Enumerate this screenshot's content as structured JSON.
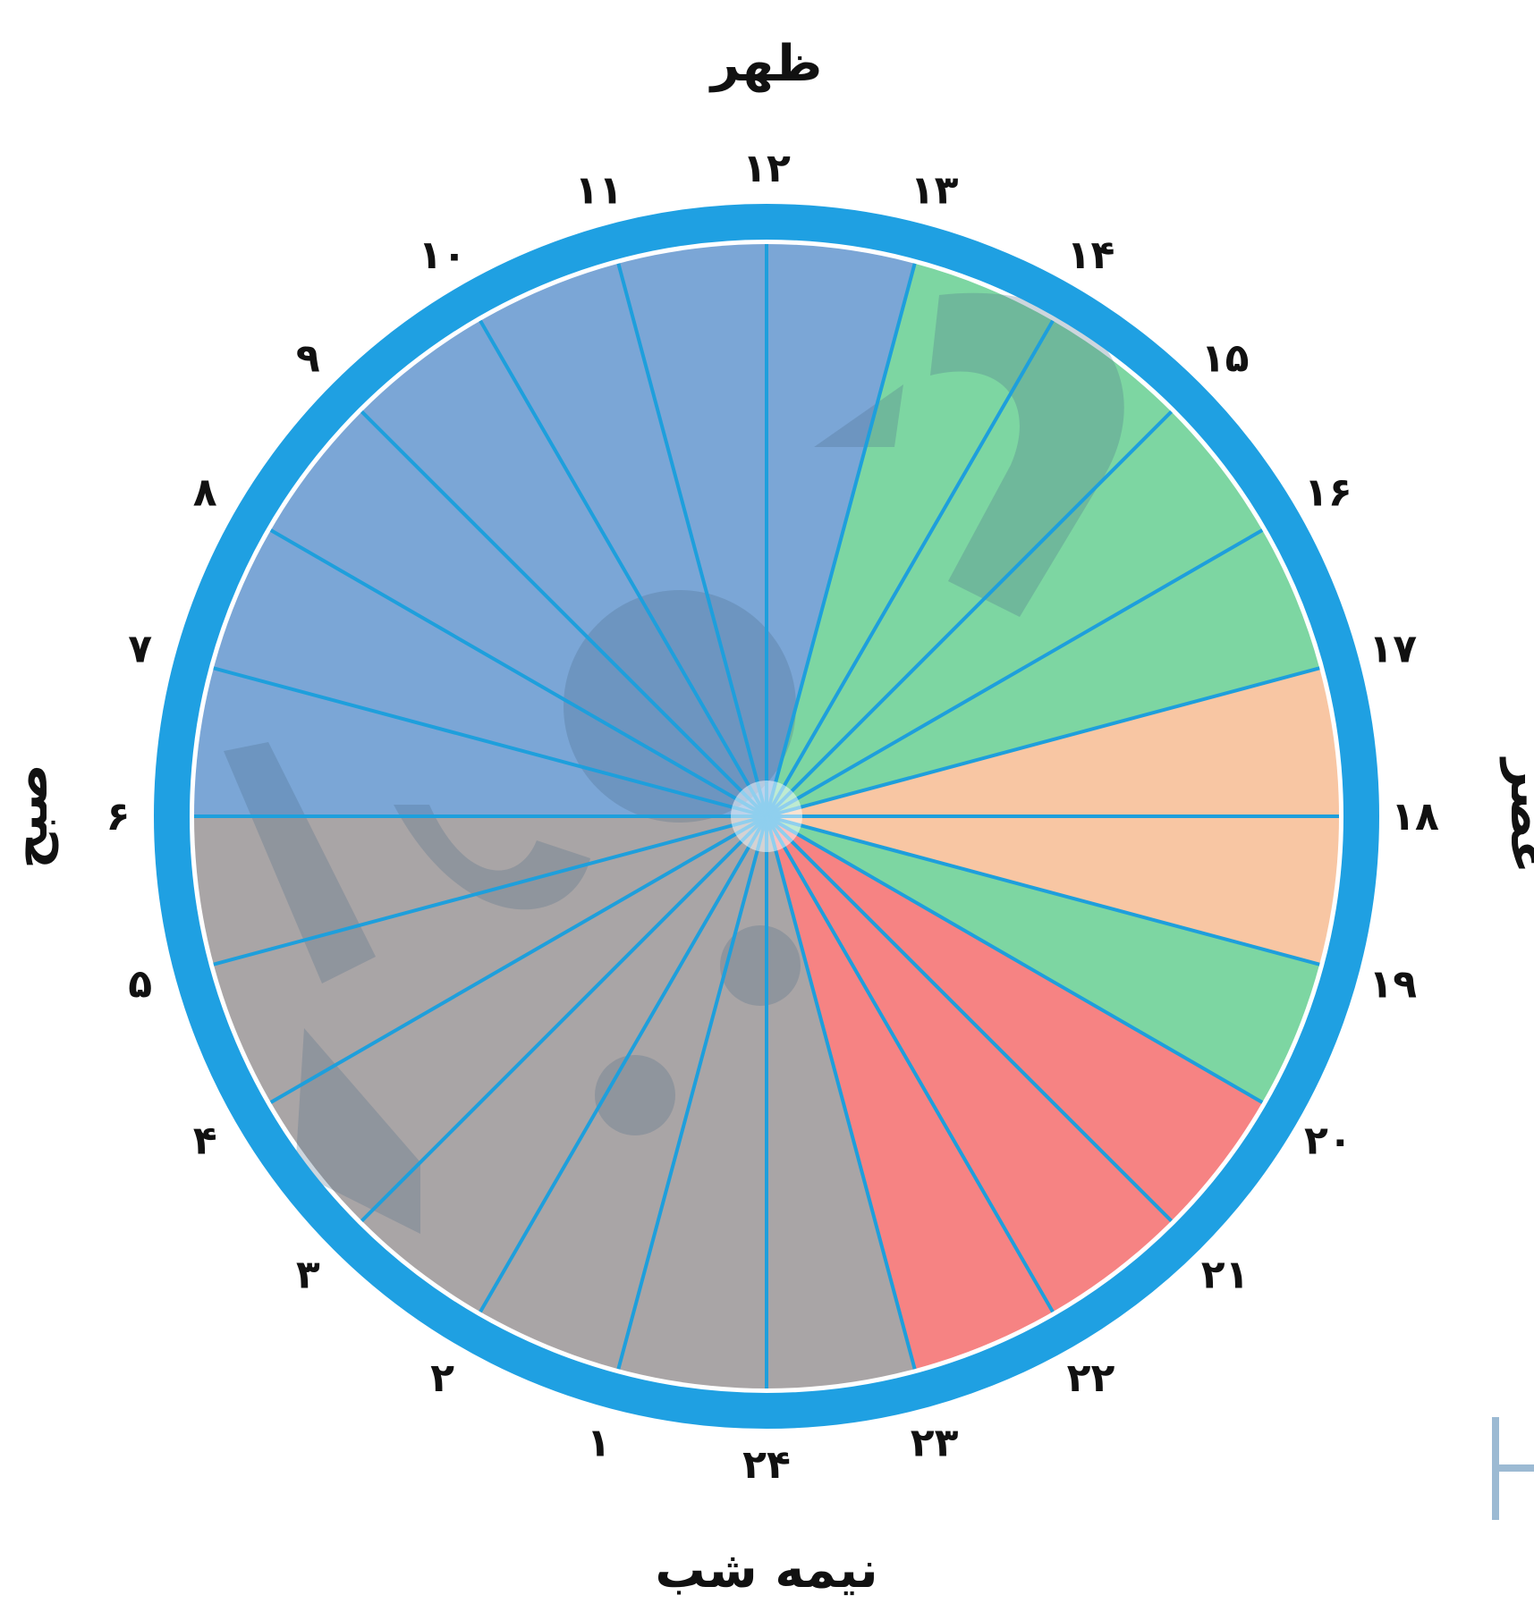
{
  "labels": {
    "top": "ظهر",
    "right": "عصر",
    "bottom": "نیمه شب",
    "left": "صبح"
  },
  "hours": [
    "۱",
    "۲",
    "۳",
    "۴",
    "۵",
    "۶",
    "۷",
    "۸",
    "۹",
    "۱۰",
    "۱۱",
    "۱۲",
    "۱۳",
    "۱۴",
    "۱۵",
    "۱۶",
    "۱۷",
    "۱۸",
    "۱۹",
    "۲۰",
    "۲۱",
    "۲۲",
    "۲۳",
    "۲۴"
  ],
  "colors": {
    "ring": "#1fa0e2",
    "spokes": "#1e9fdc",
    "morning": "#7ba6d6",
    "night": "#a9a5a6",
    "afternoon_green": "#7dd6a2",
    "sunset_peach": "#f8c6a3",
    "evening_red": "#f68383",
    "watermark": "#4a6a8a"
  },
  "sectors": [
    {
      "from": 0,
      "to": 6,
      "color": "night"
    },
    {
      "from": 6,
      "to": 12,
      "color": "morning"
    },
    {
      "from": 12,
      "to": 13,
      "color": "morning"
    },
    {
      "from": 13,
      "to": 17,
      "color": "afternoon_green"
    },
    {
      "from": 17,
      "to": 19,
      "color": "sunset_peach"
    },
    {
      "from": 19,
      "to": 20,
      "color": "afternoon_green"
    },
    {
      "from": 20,
      "to": 23,
      "color": "evening_red"
    },
    {
      "from": 23,
      "to": 24,
      "color": "night"
    }
  ]
}
